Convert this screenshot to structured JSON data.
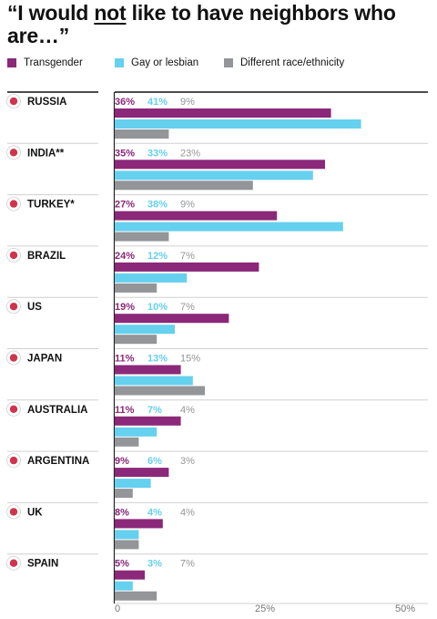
{
  "title": {
    "pre": "“I would ",
    "emph": "not",
    "post": " like to have neighbors who are…”"
  },
  "colors": {
    "transgender": "#8b2879",
    "gay": "#66d0ef",
    "race": "#939598",
    "axis": "#222222",
    "divider": "#d0d0d0",
    "tick": "#777777"
  },
  "chart_data": {
    "type": "bar",
    "orientation": "horizontal",
    "categories": [
      "RUSSIA",
      "INDIA**",
      "TURKEY*",
      "BRAZIL",
      "US",
      "JAPAN",
      "AUSTRALIA",
      "ARGENTINA",
      "UK",
      "SPAIN"
    ],
    "flags": [
      "russia-flag-icon",
      "india-flag-icon",
      "turkey-flag-icon",
      "brazil-flag-icon",
      "us-flag-icon",
      "japan-flag-icon",
      "australia-flag-icon",
      "argentina-flag-icon",
      "uk-flag-icon",
      "spain-flag-icon"
    ],
    "series": [
      {
        "name": "Transgender",
        "values": [
          36,
          35,
          27,
          24,
          19,
          11,
          11,
          9,
          8,
          5
        ],
        "labels": [
          "36%",
          "35%",
          "27%",
          "24%",
          "19%",
          "11%",
          "11%",
          "9%",
          "8%",
          "5%"
        ]
      },
      {
        "name": "Gay or lesbian",
        "values": [
          41,
          33,
          38,
          12,
          10,
          13,
          7,
          6,
          4,
          3
        ],
        "labels": [
          "41%",
          "33%",
          "38%",
          "12%",
          "10%",
          "13%",
          "7%",
          "6%",
          "4%",
          "3%"
        ]
      },
      {
        "name": "Different race/ethnicity",
        "values": [
          9,
          23,
          9,
          7,
          7,
          15,
          4,
          3,
          4,
          7
        ],
        "labels": [
          "9%",
          "23%",
          "9%",
          "7%",
          "7%",
          "15%",
          "4%",
          "3%",
          "4%",
          "7%"
        ]
      }
    ],
    "xlim": [
      0,
      50
    ],
    "xticks": [
      "0",
      "25%",
      "50%"
    ],
    "xtick_values": [
      0,
      25,
      50
    ],
    "legend_position": "top"
  }
}
